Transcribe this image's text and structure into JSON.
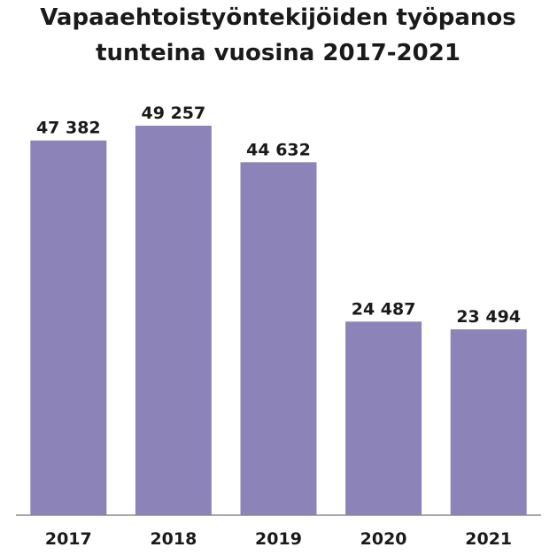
{
  "chart_data": {
    "type": "bar",
    "title_lines": [
      "Vapaaehtoistyöntekijöiden työpanos",
      "tunteina vuosina 2017-2021"
    ],
    "categories": [
      "2017",
      "2018",
      "2019",
      "2020",
      "2021"
    ],
    "values": [
      47382,
      49257,
      44632,
      24487,
      23494
    ],
    "value_labels": [
      "47 382",
      "49 257",
      "44 632",
      "24 487",
      "23 494"
    ],
    "xlabel": "",
    "ylabel": "",
    "ylim": [
      0,
      49257
    ],
    "grid": false,
    "legend": "none",
    "colors": {
      "bar": "#8c84b8",
      "axis": "#8a8a8a",
      "text": "#1a1a1a"
    }
  }
}
